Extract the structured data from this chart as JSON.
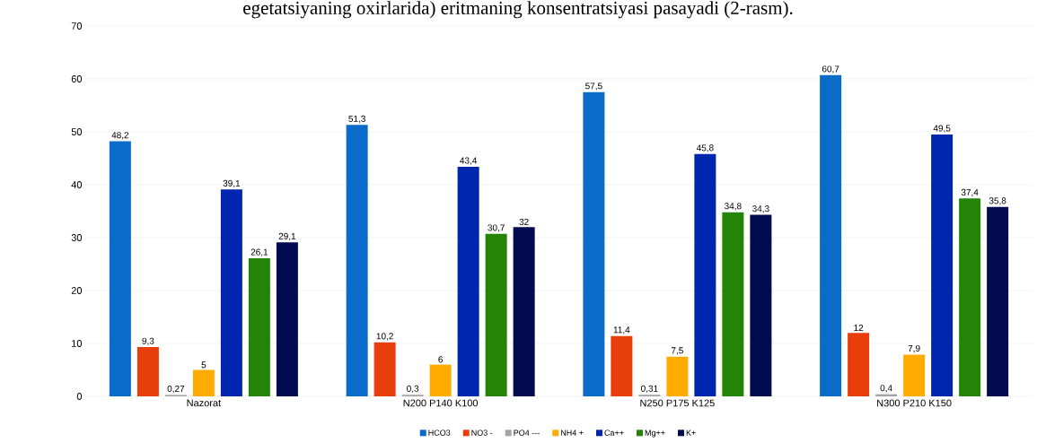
{
  "chart_data": {
    "type": "bar",
    "title": "egetatsiyaning oxirlarida) eritmaning konsentratsiyasi pasayadi (2-rasm).",
    "categories": [
      "Nazorat",
      "N200 P140 K100",
      "N250 P175 K125",
      "N300 P210 K150"
    ],
    "series": [
      {
        "name": "HCO3",
        "color": "#0a6cc8",
        "values": [
          48.2,
          51.3,
          57.5,
          60.7
        ],
        "value_labels": [
          "48,2",
          "51,3",
          "57,5",
          "60,7"
        ]
      },
      {
        "name": "NO3 -",
        "color": "#e83e0c",
        "values": [
          9.3,
          10.2,
          11.4,
          12
        ],
        "value_labels": [
          "9,3",
          "10,2",
          "11,4",
          "12"
        ]
      },
      {
        "name": "PO4 ---",
        "color": "#a5a5a5",
        "values": [
          0.27,
          0.3,
          0.31,
          0.4
        ],
        "value_labels": [
          "0,27",
          "0,3",
          "0,31",
          "0,4"
        ]
      },
      {
        "name": "NH4 +",
        "color": "#ffab00",
        "values": [
          5,
          6,
          7.5,
          7.9
        ],
        "value_labels": [
          "5",
          "6",
          "7,5",
          "7,9"
        ]
      },
      {
        "name": "Ca++",
        "color": "#0026b0",
        "values": [
          39.1,
          43.4,
          45.8,
          49.5
        ],
        "value_labels": [
          "39,1",
          "43,4",
          "45,8",
          "49,5"
        ]
      },
      {
        "name": "Mg++",
        "color": "#248408",
        "values": [
          26.1,
          30.7,
          34.8,
          37.4
        ],
        "value_labels": [
          "26,1",
          "30,7",
          "34,8",
          "37,4"
        ]
      },
      {
        "name": "K+",
        "color": "#020a50",
        "values": [
          29.1,
          32,
          34.3,
          35.8
        ],
        "value_labels": [
          "29,1",
          "32",
          "34,3",
          "35,8"
        ]
      }
    ],
    "ylim": [
      0,
      70
    ],
    "yticks": [
      0,
      10,
      20,
      30,
      40,
      50,
      60,
      70
    ],
    "grid": "y",
    "legend": "bottom"
  }
}
